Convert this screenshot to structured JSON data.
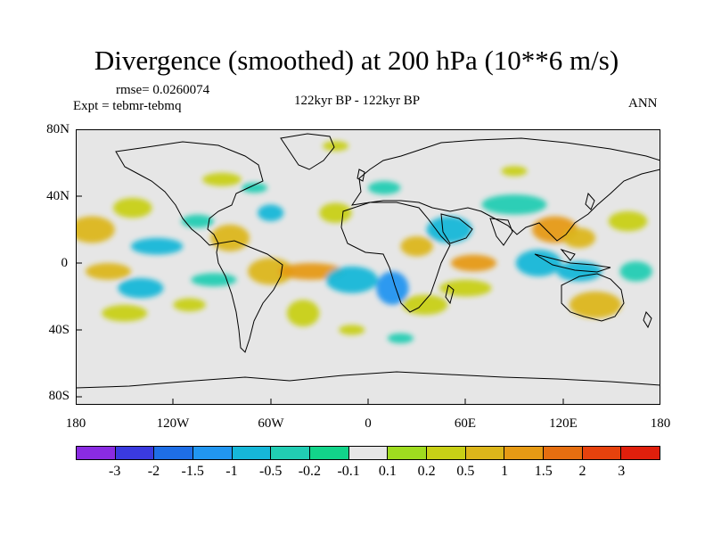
{
  "title": "Divergence (smoothed) at 200 hPa (10**6 m/s)",
  "rmse": "rmse= 0.0260074",
  "expt": "Expt = tebmr-tebmq",
  "center_label": "122kyr BP - 122kyr BP",
  "right_label": "ANN",
  "y_axis": {
    "labels": [
      "80N",
      "40N",
      "0",
      "40S",
      "80S"
    ]
  },
  "x_axis": {
    "labels": [
      "180",
      "120W",
      "60W",
      "0",
      "60E",
      "120E",
      "180"
    ]
  },
  "colorbar": {
    "colors": [
      "#8a2be2",
      "#3a3adf",
      "#1e6ee6",
      "#2196f0",
      "#16b7d8",
      "#21cdb3",
      "#12d48a",
      "#e6e6e6",
      "#9fdc1f",
      "#c8d016",
      "#dcb61a",
      "#e69a14",
      "#e56e10",
      "#e6420d",
      "#e01f0c"
    ],
    "labels": [
      "-3",
      "-2",
      "-1.5",
      "-1",
      "-0.5",
      "-0.2",
      "-0.1",
      "0.1",
      "0.2",
      "0.5",
      "1",
      "1.5",
      "2",
      "3"
    ]
  },
  "map_data": {
    "type": "contour-map",
    "projection": "cylindrical-equidistant",
    "lon_range": [
      -180,
      180
    ],
    "lat_range": [
      -90,
      90
    ],
    "blobs": [
      {
        "lon": -170,
        "lat": 20,
        "rx": 14,
        "ry": 8,
        "level": "0.5"
      },
      {
        "lon": -145,
        "lat": 33,
        "rx": 12,
        "ry": 6,
        "level": "0.2"
      },
      {
        "lon": -130,
        "lat": 10,
        "rx": 16,
        "ry": 5,
        "level": "-0.5"
      },
      {
        "lon": -160,
        "lat": -5,
        "rx": 14,
        "ry": 5,
        "level": "0.5"
      },
      {
        "lon": -140,
        "lat": -15,
        "rx": 14,
        "ry": 6,
        "level": "-0.5"
      },
      {
        "lon": -150,
        "lat": -30,
        "rx": 14,
        "ry": 5,
        "level": "0.2"
      },
      {
        "lon": -110,
        "lat": -25,
        "rx": 10,
        "ry": 4,
        "level": "0.2"
      },
      {
        "lon": -95,
        "lat": -10,
        "rx": 14,
        "ry": 4,
        "level": "-0.2"
      },
      {
        "lon": -85,
        "lat": 15,
        "rx": 12,
        "ry": 8,
        "level": "0.5"
      },
      {
        "lon": -105,
        "lat": 25,
        "rx": 10,
        "ry": 4,
        "level": "-0.2"
      },
      {
        "lon": -60,
        "lat": 30,
        "rx": 8,
        "ry": 5,
        "level": "-0.5"
      },
      {
        "lon": -60,
        "lat": -5,
        "rx": 14,
        "ry": 8,
        "level": "0.5"
      },
      {
        "lon": -35,
        "lat": -5,
        "rx": 20,
        "ry": 5,
        "level": "1"
      },
      {
        "lon": -40,
        "lat": -30,
        "rx": 10,
        "ry": 8,
        "level": "0.2"
      },
      {
        "lon": -20,
        "lat": 30,
        "rx": 10,
        "ry": 6,
        "level": "0.2"
      },
      {
        "lon": -10,
        "lat": -10,
        "rx": 16,
        "ry": 8,
        "level": "-0.5"
      },
      {
        "lon": 15,
        "lat": -15,
        "rx": 10,
        "ry": 10,
        "level": "-1"
      },
      {
        "lon": 35,
        "lat": -25,
        "rx": 14,
        "ry": 6,
        "level": "0.2"
      },
      {
        "lon": 30,
        "lat": 10,
        "rx": 10,
        "ry": 6,
        "level": "0.5"
      },
      {
        "lon": 50,
        "lat": 20,
        "rx": 14,
        "ry": 8,
        "level": "-0.5"
      },
      {
        "lon": 65,
        "lat": 0,
        "rx": 14,
        "ry": 5,
        "level": "1"
      },
      {
        "lon": 60,
        "lat": -15,
        "rx": 16,
        "ry": 5,
        "level": "0.2"
      },
      {
        "lon": 90,
        "lat": 35,
        "rx": 20,
        "ry": 6,
        "level": "-0.2"
      },
      {
        "lon": 115,
        "lat": 20,
        "rx": 14,
        "ry": 8,
        "level": "1"
      },
      {
        "lon": 105,
        "lat": 0,
        "rx": 14,
        "ry": 8,
        "level": "-0.5"
      },
      {
        "lon": 130,
        "lat": 15,
        "rx": 10,
        "ry": 6,
        "level": "0.5"
      },
      {
        "lon": 130,
        "lat": -5,
        "rx": 14,
        "ry": 6,
        "level": "-0.5"
      },
      {
        "lon": 140,
        "lat": -25,
        "rx": 16,
        "ry": 8,
        "level": "0.5"
      },
      {
        "lon": 160,
        "lat": 25,
        "rx": 12,
        "ry": 6,
        "level": "0.2"
      },
      {
        "lon": 165,
        "lat": -5,
        "rx": 10,
        "ry": 6,
        "level": "-0.2"
      },
      {
        "lon": -20,
        "lat": 70,
        "rx": 8,
        "ry": 3,
        "level": "0.2"
      },
      {
        "lon": 90,
        "lat": 55,
        "rx": 8,
        "ry": 3,
        "level": "0.2"
      },
      {
        "lon": -90,
        "lat": 50,
        "rx": 12,
        "ry": 4,
        "level": "0.2"
      },
      {
        "lon": -70,
        "lat": 45,
        "rx": 8,
        "ry": 3,
        "level": "-0.2"
      },
      {
        "lon": 10,
        "lat": 45,
        "rx": 10,
        "ry": 4,
        "level": "-0.2"
      },
      {
        "lon": -10,
        "lat": -40,
        "rx": 8,
        "ry": 3,
        "level": "0.2"
      },
      {
        "lon": 20,
        "lat": -45,
        "rx": 8,
        "ry": 3,
        "level": "-0.2"
      }
    ]
  }
}
